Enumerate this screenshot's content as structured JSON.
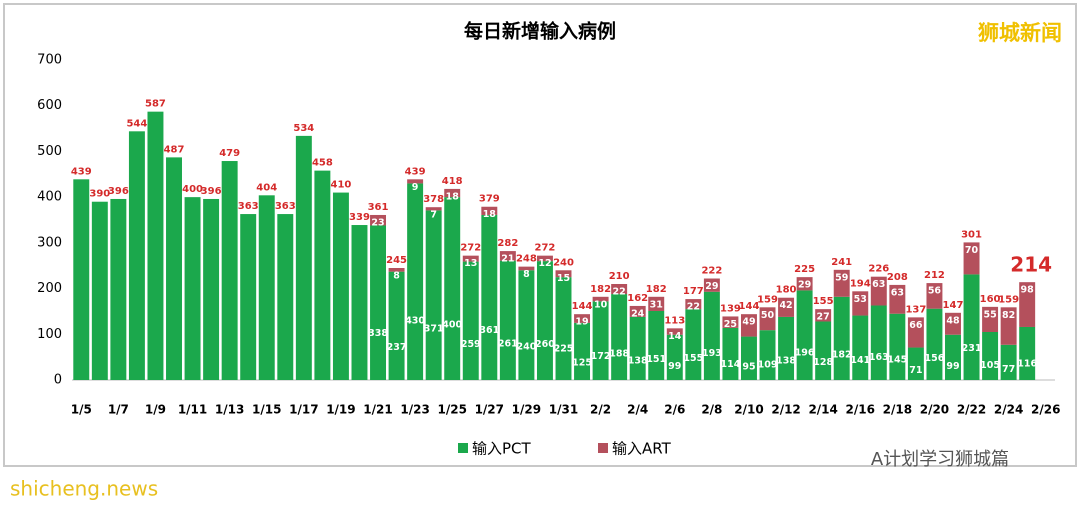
{
  "brand": "狮城新闻",
  "footer": {
    "account": "A计划学习狮城篇",
    "site": "shicheng.news"
  },
  "chart_data": {
    "type": "stacked_bar",
    "title": "每日新增输入病例",
    "categories": [
      "1/5",
      null,
      "1/7",
      null,
      "1/9",
      null,
      "1/11",
      null,
      "1/13",
      null,
      "1/15",
      null,
      "1/17",
      null,
      "1/19",
      null,
      "1/21",
      null,
      "1/23",
      null,
      "1/25",
      null,
      "1/27",
      null,
      "1/29",
      null,
      "1/31",
      null,
      "2/2",
      null,
      "2/4",
      null,
      "2/6",
      null,
      "2/8",
      null,
      "2/10",
      null,
      "2/12",
      null,
      "2/14",
      null,
      "2/16",
      null,
      "2/18",
      null,
      "2/20",
      null,
      "2/22",
      null,
      "2/24",
      null,
      "2/26"
    ],
    "series": [
      {
        "name": "输入PCT",
        "color": "#1ba84c",
        "values": [
          439,
          390,
          396,
          544,
          587,
          487,
          400,
          396,
          479,
          363,
          404,
          363,
          534,
          458,
          410,
          339,
          338,
          237,
          430,
          371,
          400,
          259,
          361,
          261,
          240,
          260,
          225,
          125,
          172,
          188,
          138,
          151,
          99,
          155,
          193,
          114,
          95,
          109,
          138,
          196,
          128,
          182,
          141,
          163,
          145,
          71,
          156,
          99,
          231,
          105,
          77,
          116,
          null
        ]
      },
      {
        "name": "输入ART",
        "color": "#b4505c",
        "values": [
          null,
          null,
          null,
          null,
          null,
          null,
          null,
          null,
          null,
          null,
          null,
          null,
          null,
          null,
          null,
          null,
          23,
          8,
          9,
          7,
          18,
          13,
          18,
          21,
          8,
          12,
          15,
          19,
          10,
          22,
          24,
          31,
          14,
          22,
          29,
          25,
          49,
          50,
          42,
          29,
          27,
          59,
          53,
          63,
          63,
          66,
          56,
          48,
          70,
          55,
          82,
          98,
          null
        ]
      }
    ],
    "totals": [
      null,
      null,
      null,
      null,
      null,
      null,
      null,
      null,
      null,
      null,
      null,
      null,
      null,
      null,
      null,
      null,
      361,
      245,
      439,
      378,
      418,
      272,
      379,
      282,
      248,
      272,
      240,
      144,
      182,
      210,
      162,
      182,
      113,
      177,
      222,
      139,
      144,
      159,
      180,
      225,
      155,
      241,
      194,
      226,
      208,
      137,
      212,
      147,
      301,
      160,
      159,
      214,
      null
    ],
    "ylim": [
      0,
      700
    ],
    "yticks": [
      0,
      100,
      200,
      300,
      400,
      500,
      600,
      700
    ],
    "grid": false
  }
}
